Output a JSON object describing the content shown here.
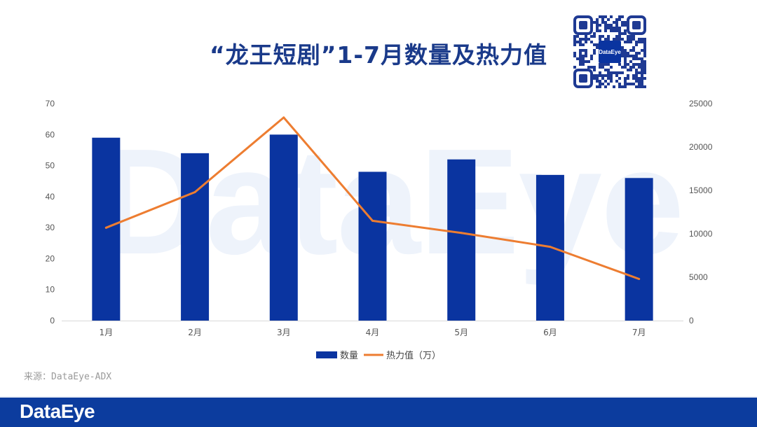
{
  "title": "“龙王短剧”1-7月数量及热力值",
  "source": "来源：DataEye-ADX",
  "watermark": "DataEye",
  "footer_logo": "DataEye",
  "qr_label": "DataEye",
  "colors": {
    "bar": "#0a34a0",
    "line": "#ed7d31",
    "title": "#1a3a8a",
    "footer": "#0c3c9e"
  },
  "chart_data": {
    "type": "bar",
    "categories": [
      "1月",
      "2月",
      "3月",
      "4月",
      "5月",
      "6月",
      "7月"
    ],
    "series": [
      {
        "name": "数量",
        "type": "bar",
        "axis": "left",
        "values": [
          59,
          54,
          60,
          48,
          52,
          47,
          46
        ]
      },
      {
        "name": "热力值（万）",
        "type": "line",
        "axis": "right",
        "values": [
          10700,
          14800,
          23400,
          11500,
          10100,
          8500,
          4800
        ]
      }
    ],
    "y_left": {
      "min": 0,
      "max": 70,
      "ticks": [
        0,
        10,
        20,
        30,
        40,
        50,
        60,
        70
      ]
    },
    "y_right": {
      "min": 0,
      "max": 25000,
      "ticks": [
        0,
        5000,
        10000,
        15000,
        20000,
        25000
      ]
    },
    "legend_position": "bottom-center",
    "grid": false
  }
}
